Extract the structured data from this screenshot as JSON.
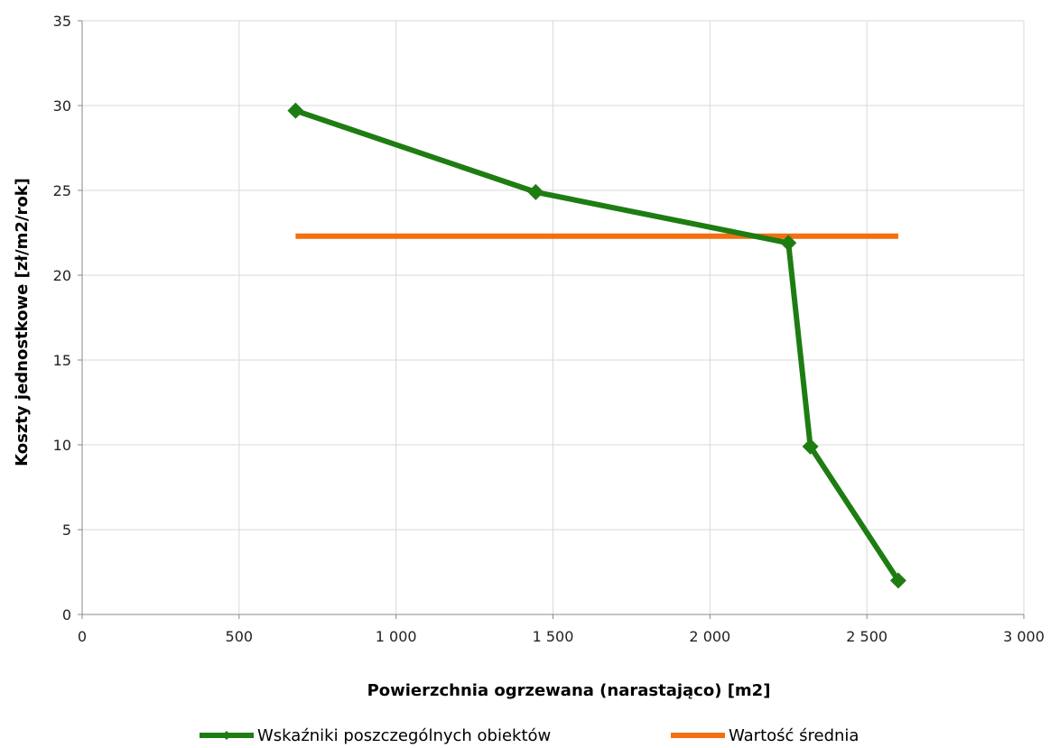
{
  "chart_data": {
    "type": "line",
    "title": "",
    "xlabel": "Powierzchnia ogrzewana (narastająco) [m2]",
    "ylabel": "Koszty jednostkowe [zł/m2/rok]",
    "xlim": [
      0,
      3000
    ],
    "ylim": [
      0,
      35
    ],
    "x_ticks": [
      0,
      500,
      1000,
      1500,
      2000,
      2500,
      3000
    ],
    "x_tick_labels": [
      "0",
      "500",
      "1 000",
      "1 500",
      "2 000",
      "2 500",
      "3 000"
    ],
    "y_ticks": [
      0,
      5,
      10,
      15,
      20,
      25,
      30,
      35
    ],
    "y_tick_labels": [
      "0",
      "5",
      "10",
      "15",
      "20",
      "25",
      "30",
      "35"
    ],
    "grid": true,
    "legend_position": "bottom",
    "series": [
      {
        "name": "Wskaźniki poszczególnych obiektów",
        "color": "#1e7d12",
        "marker": "diamond",
        "x": [
          680,
          1445,
          2250,
          2320,
          2600
        ],
        "y": [
          29.7,
          24.9,
          21.9,
          9.9,
          2.0
        ]
      },
      {
        "name": "Wartość średnia",
        "color": "#f36f10",
        "marker": "none",
        "x": [
          680,
          2600
        ],
        "y": [
          22.3,
          22.3
        ]
      }
    ]
  }
}
